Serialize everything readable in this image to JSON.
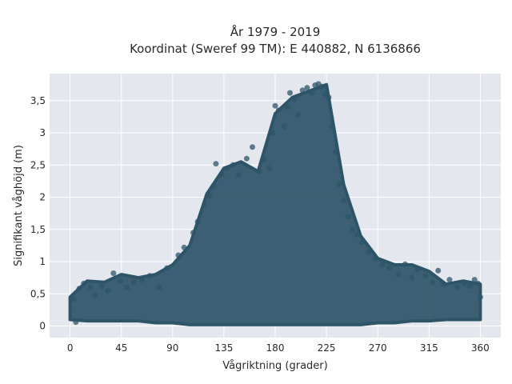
{
  "chart_data": {
    "type": "scatter",
    "title": [
      "År 1979 - 2019",
      "Koordinat (Sweref 99 TM): E 440882, N 6136866"
    ],
    "xlabel": "Vågriktning (grader)",
    "ylabel": "Signifikant våghöjd (m)",
    "xlim": [
      -18,
      378
    ],
    "ylim": [
      -0.18,
      3.92
    ],
    "x_ticks": [
      0,
      45,
      90,
      135,
      180,
      225,
      270,
      315,
      360
    ],
    "x_tick_labels": [
      "0",
      "45",
      "90",
      "135",
      "180",
      "225",
      "270",
      "315",
      "360"
    ],
    "y_ticks": [
      0,
      0.5,
      1,
      1.5,
      2,
      2.5,
      3,
      3.5
    ],
    "y_tick_labels": [
      "0",
      "0,5",
      "1",
      "1,5",
      "2",
      "2,5",
      "3",
      "3,5"
    ],
    "grid": true,
    "legend": "none",
    "colors": {
      "point": "#2e5468",
      "plot_bg": "#e5e7ef"
    },
    "envelope": {
      "x": [
        0,
        15,
        30,
        45,
        60,
        75,
        90,
        105,
        120,
        135,
        150,
        165,
        180,
        195,
        210,
        225,
        240,
        255,
        270,
        285,
        300,
        315,
        330,
        345,
        360
      ],
      "upper": [
        0.45,
        0.7,
        0.68,
        0.8,
        0.75,
        0.8,
        0.95,
        1.25,
        2.05,
        2.45,
        2.55,
        2.4,
        3.3,
        3.55,
        3.65,
        3.75,
        2.2,
        1.4,
        1.05,
        0.95,
        0.95,
        0.85,
        0.65,
        0.7,
        0.65
      ],
      "lower": [
        0.1,
        0.08,
        0.08,
        0.08,
        0.08,
        0.05,
        0.05,
        0.02,
        0.02,
        0.02,
        0.02,
        0.02,
        0.02,
        0.02,
        0.02,
        0.02,
        0.02,
        0.02,
        0.05,
        0.05,
        0.08,
        0.08,
        0.1,
        0.1,
        0.1
      ]
    },
    "points": [
      [
        3,
        0.42
      ],
      [
        5,
        0.06
      ],
      [
        8,
        0.58
      ],
      [
        12,
        0.66
      ],
      [
        18,
        0.6
      ],
      [
        22,
        0.48
      ],
      [
        28,
        0.62
      ],
      [
        33,
        0.55
      ],
      [
        38,
        0.82
      ],
      [
        44,
        0.7
      ],
      [
        50,
        0.6
      ],
      [
        56,
        0.68
      ],
      [
        63,
        0.72
      ],
      [
        70,
        0.78
      ],
      [
        78,
        0.6
      ],
      [
        85,
        0.9
      ],
      [
        95,
        1.1
      ],
      [
        100,
        1.22
      ],
      [
        108,
        1.45
      ],
      [
        112,
        1.62
      ],
      [
        118,
        1.88
      ],
      [
        122,
        2.02
      ],
      [
        126,
        2.18
      ],
      [
        128,
        2.52
      ],
      [
        133,
        2.35
      ],
      [
        138,
        2.45
      ],
      [
        143,
        2.5
      ],
      [
        148,
        2.35
      ],
      [
        155,
        2.6
      ],
      [
        160,
        2.78
      ],
      [
        166,
        2.4
      ],
      [
        170,
        2.58
      ],
      [
        175,
        2.45
      ],
      [
        178,
        3.0
      ],
      [
        180,
        3.42
      ],
      [
        183,
        3.35
      ],
      [
        188,
        3.1
      ],
      [
        191,
        3.4
      ],
      [
        193,
        3.62
      ],
      [
        197,
        3.52
      ],
      [
        200,
        3.28
      ],
      [
        204,
        3.66
      ],
      [
        208,
        3.7
      ],
      [
        212,
        3.62
      ],
      [
        215,
        3.74
      ],
      [
        218,
        3.76
      ],
      [
        221,
        3.72
      ],
      [
        224,
        3.6
      ],
      [
        227,
        3.55
      ],
      [
        230,
        3.1
      ],
      [
        233,
        2.7
      ],
      [
        236,
        2.2
      ],
      [
        240,
        1.95
      ],
      [
        244,
        1.7
      ],
      [
        248,
        1.5
      ],
      [
        252,
        1.42
      ],
      [
        256,
        1.3
      ],
      [
        262,
        1.15
      ],
      [
        268,
        1.05
      ],
      [
        274,
        0.95
      ],
      [
        280,
        0.9
      ],
      [
        288,
        0.8
      ],
      [
        294,
        0.96
      ],
      [
        300,
        0.75
      ],
      [
        305,
        0.88
      ],
      [
        312,
        0.78
      ],
      [
        318,
        0.68
      ],
      [
        323,
        0.86
      ],
      [
        328,
        0.65
      ],
      [
        333,
        0.72
      ],
      [
        340,
        0.6
      ],
      [
        346,
        0.66
      ],
      [
        351,
        0.62
      ],
      [
        355,
        0.72
      ],
      [
        358,
        0.66
      ],
      [
        360,
        0.45
      ]
    ]
  }
}
